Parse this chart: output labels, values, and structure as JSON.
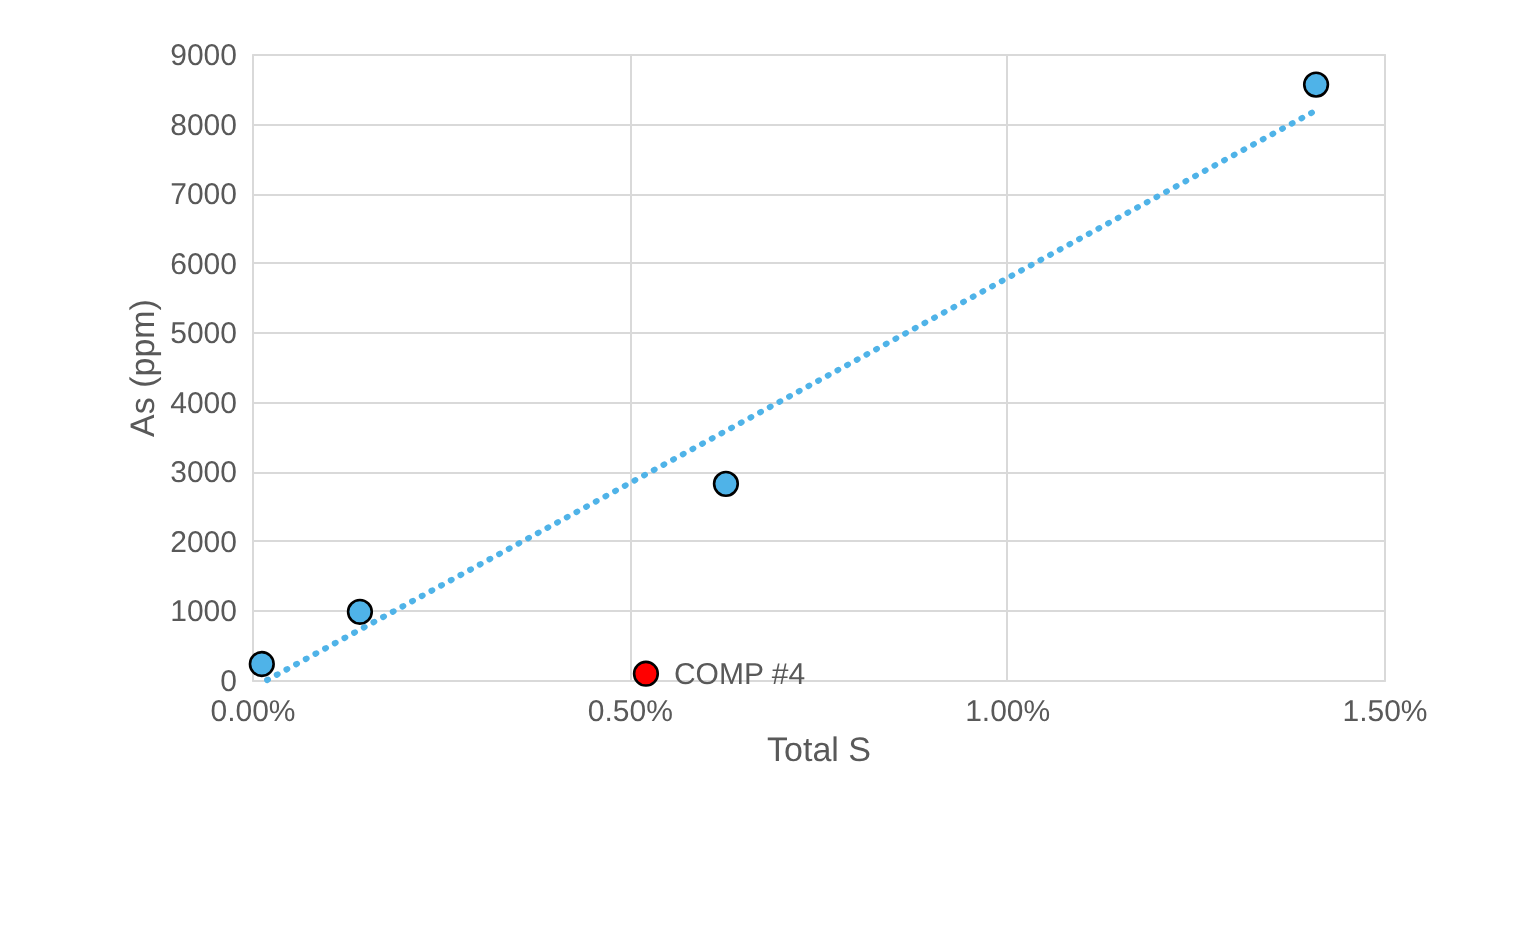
{
  "chart_data": {
    "type": "scatter",
    "xlabel": "Total S",
    "ylabel": "As (ppm)",
    "xlim": [
      0,
      1.5
    ],
    "xticks": [
      {
        "value": 0,
        "label": "0.00%"
      },
      {
        "value": 0.5,
        "label": "0.50%"
      },
      {
        "value": 1.0,
        "label": "1.00%"
      },
      {
        "value": 1.5,
        "label": "1.50%"
      }
    ],
    "ylim": [
      0,
      9000
    ],
    "yticks": [
      0,
      1000,
      2000,
      3000,
      4000,
      5000,
      6000,
      7000,
      8000,
      9000
    ],
    "grid": true,
    "marker": "circle",
    "series": [
      {
        "color": "#4fb3e8",
        "x": [
          0.013,
          0.143,
          0.628,
          1.41
        ],
        "values": [
          230,
          980,
          2820,
          8560
        ]
      },
      {
        "color": "#ff0000",
        "x": [
          0.522
        ],
        "values": [
          90
        ]
      },
      {
        "type": "line",
        "line_style": "dotted",
        "marker": "none",
        "color": "#4fb3e8",
        "x": [
          0.02,
          1.41
        ],
        "values": [
          0,
          8190
        ]
      }
    ],
    "annotations": [
      {
        "text": "COMP #4",
        "x": 0.522,
        "y": 90
      }
    ]
  }
}
